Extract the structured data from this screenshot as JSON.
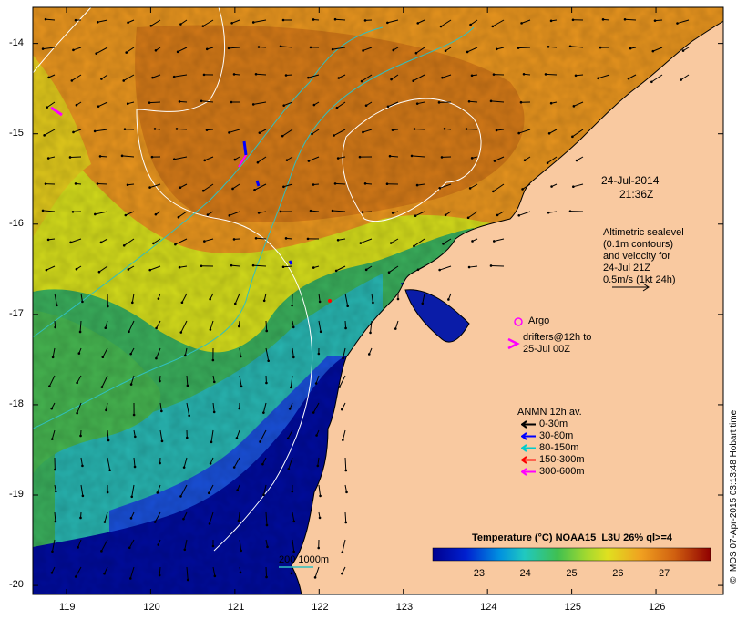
{
  "annotations": {
    "date": "24-Jul-2014",
    "time": "21:36Z",
    "altimetry": [
      "Altimetric sealevel",
      "(0.1m contours)",
      "and velocity for",
      "24-Jul 21Z",
      "0.5m/s (1kt 24h)"
    ],
    "argo": "Argo",
    "drifters": [
      "drifters@12h to",
      "25-Jul 00Z"
    ],
    "bathymetry": "200  1000m",
    "credit": "© IMOS 07-Apr-2015 03:13:48 Hobart time"
  },
  "moorings_legend": {
    "title": "ANMN 12h av.",
    "items": [
      {
        "label": "0-30m",
        "color": "#000000"
      },
      {
        "label": "30-80m",
        "color": "#0000ff"
      },
      {
        "label": "80-150m",
        "color": "#00cccc"
      },
      {
        "label": "150-300m",
        "color": "#ff0000"
      },
      {
        "label": "300-600m",
        "color": "#ff00ff"
      }
    ]
  },
  "colorbar": {
    "title": "Temperature (°C) NOAA15_L3U 26% ql>=4",
    "ticks": [
      "23",
      "24",
      "25",
      "26",
      "27"
    ],
    "range": [
      22,
      28
    ]
  },
  "axes": {
    "lon_ticks": [
      "119",
      "120",
      "121",
      "122",
      "123",
      "124",
      "125",
      "126"
    ],
    "lat_ticks": [
      "-14",
      "-15",
      "-16",
      "-17",
      "-18",
      "-19",
      "-20"
    ],
    "lon_range": [
      118.6,
      126.8
    ],
    "lat_range": [
      -20.1,
      -13.6
    ]
  },
  "colors": {
    "land": "#f9c9a0",
    "warm": "#d9821a",
    "warm_mid": "#e89a22",
    "yellow": "#d8e01a",
    "green": "#38b060",
    "cyan": "#20b0c0",
    "blue": "#1040d0",
    "deep_blue": "#0010a0"
  }
}
